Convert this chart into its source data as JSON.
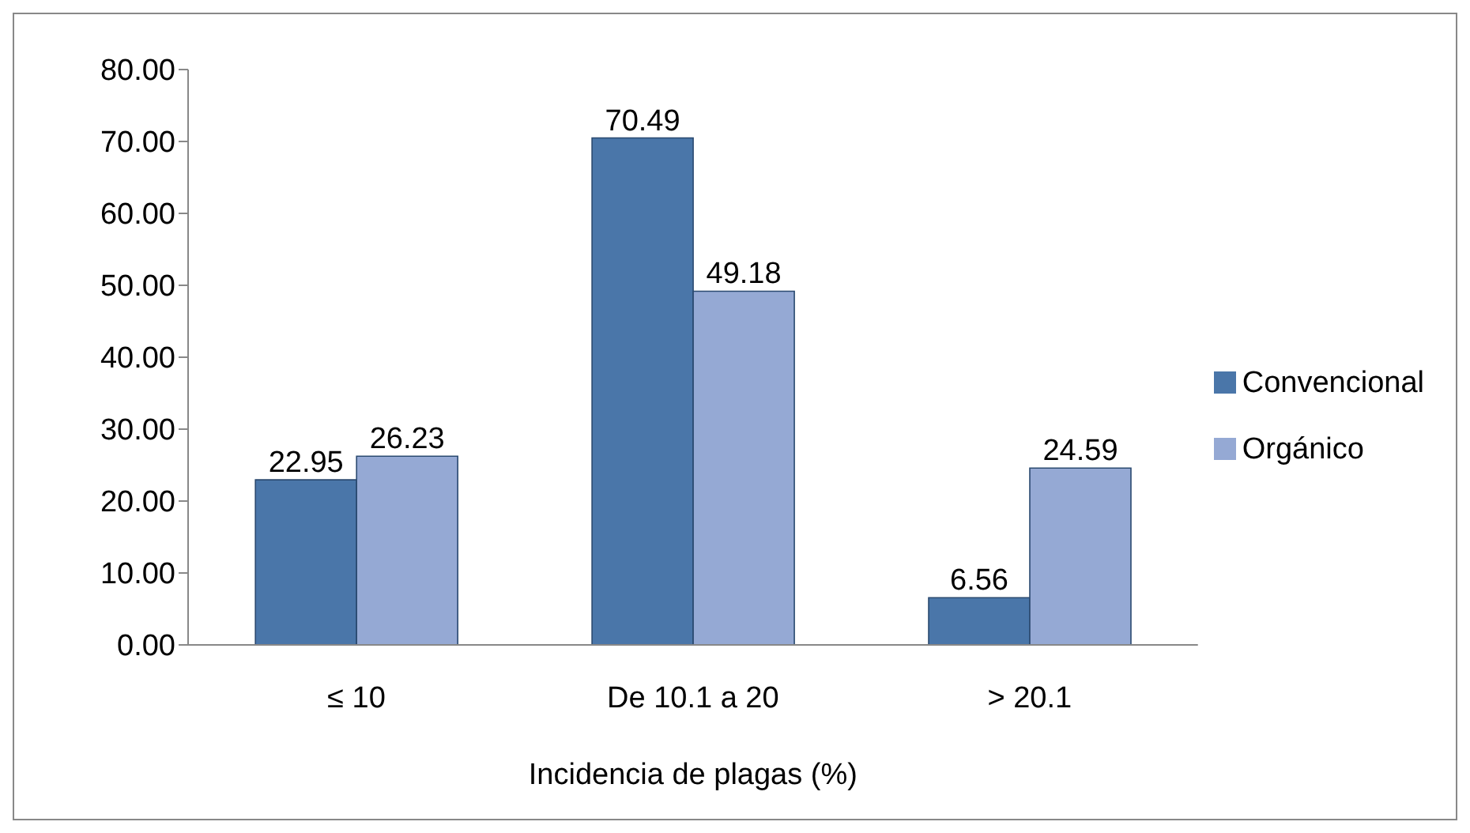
{
  "chart_data": {
    "type": "bar",
    "xlabel": "Incidencia  de plagas  (%)",
    "categories": [
      "≤ 10",
      "De 10.1 a 20",
      ">  20.1"
    ],
    "series": [
      {
        "name": "Convencional",
        "color": "#4a76a9",
        "values": [
          22.95,
          70.49,
          6.56
        ]
      },
      {
        "name": "Orgánico",
        "color": "#95a9d4",
        "values": [
          26.23,
          49.18,
          24.59
        ]
      }
    ],
    "ylim": [
      0,
      80
    ],
    "yticks": [
      {
        "value": 0,
        "label": "0.00"
      },
      {
        "value": 10,
        "label": "10.00"
      },
      {
        "value": 20,
        "label": "20.00"
      },
      {
        "value": 30,
        "label": "30.00"
      },
      {
        "value": 40,
        "label": "40.00"
      },
      {
        "value": 50,
        "label": "50.00"
      },
      {
        "value": 60,
        "label": "60.00"
      },
      {
        "value": 70,
        "label": "70.00"
      },
      {
        "value": 80,
        "label": "80.00"
      }
    ],
    "data_labels": true,
    "legend": "right",
    "grid": false
  }
}
